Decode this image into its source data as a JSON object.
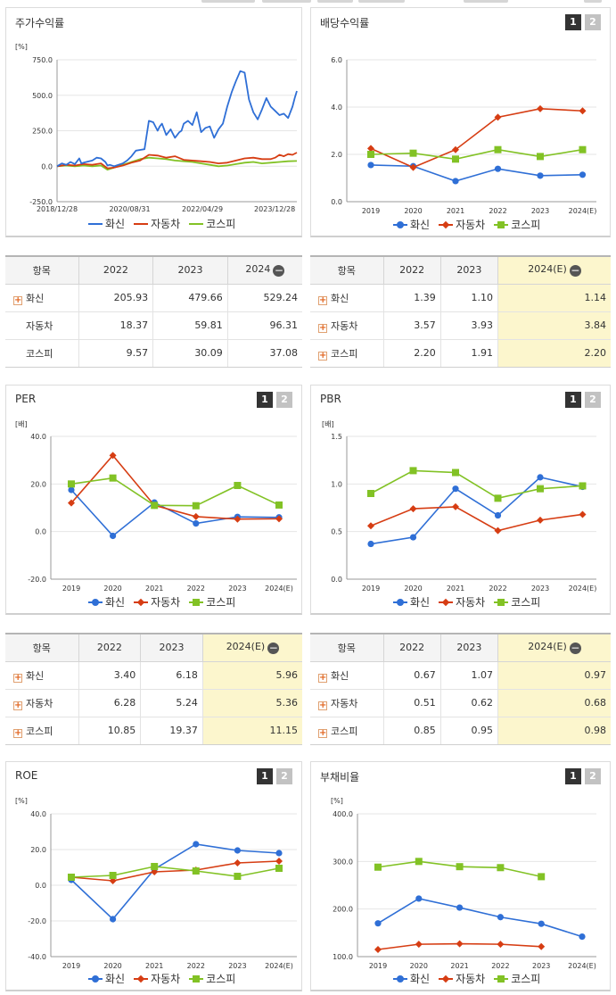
{
  "colors": {
    "hwashin": "#2f6fd6",
    "auto": "#d63d13",
    "kospi": "#82c225",
    "highlight": "#fcf6cd"
  },
  "legend_names": [
    "화신",
    "자동차",
    "코스피"
  ],
  "stock_return": {
    "title": "주가수익률",
    "unit": "[%]",
    "y_ticks": [
      "750.0",
      "500.0",
      "250.0",
      "0.0",
      "-250.0"
    ],
    "x_ticks": [
      "2018/12/28",
      "2020/08/31",
      "2022/04/29",
      "2023/12/28"
    ],
    "table": {
      "header": [
        "항목",
        "2022",
        "2023",
        "2024"
      ],
      "rows": [
        {
          "name": "화신",
          "values": [
            "205.93",
            "479.66",
            "529.24"
          ]
        },
        {
          "name": "자동차",
          "values": [
            "18.37",
            "59.81",
            "96.31"
          ]
        },
        {
          "name": "코스피",
          "values": [
            "9.57",
            "30.09",
            "37.08"
          ]
        }
      ]
    }
  },
  "dividend": {
    "title": "배당수익률",
    "unit": "[%]",
    "y_ticks": [
      "6.0",
      "4.0",
      "2.0",
      "0.0"
    ],
    "x_ticks": [
      "2019",
      "2020",
      "2021",
      "2022",
      "2023",
      "2024(E)"
    ],
    "table": {
      "header": [
        "항목",
        "2022",
        "2023",
        "2024(E)"
      ],
      "rows": [
        {
          "name": "화신",
          "values": [
            "1.39",
            "1.10",
            "1.14"
          ]
        },
        {
          "name": "자동차",
          "values": [
            "3.57",
            "3.93",
            "3.84"
          ]
        },
        {
          "name": "코스피",
          "values": [
            "2.20",
            "1.91",
            "2.20"
          ]
        }
      ]
    }
  },
  "per": {
    "title": "PER",
    "unit": "[배]",
    "y_ticks": [
      "40.0",
      "20.0",
      "0.0",
      "-20.0"
    ],
    "x_ticks": [
      "2019",
      "2020",
      "2021",
      "2022",
      "2023",
      "2024(E)"
    ],
    "table": {
      "header": [
        "항목",
        "2022",
        "2023",
        "2024(E)"
      ],
      "rows": [
        {
          "name": "화신",
          "values": [
            "3.40",
            "6.18",
            "5.96"
          ]
        },
        {
          "name": "자동차",
          "values": [
            "6.28",
            "5.24",
            "5.36"
          ]
        },
        {
          "name": "코스피",
          "values": [
            "10.85",
            "19.37",
            "11.15"
          ]
        }
      ]
    }
  },
  "pbr": {
    "title": "PBR",
    "unit": "[배]",
    "y_ticks": [
      "1.5",
      "1.0",
      "0.5",
      "0.0"
    ],
    "x_ticks": [
      "2019",
      "2020",
      "2021",
      "2022",
      "2023",
      "2024(E)"
    ],
    "table": {
      "header": [
        "항목",
        "2022",
        "2023",
        "2024(E)"
      ],
      "rows": [
        {
          "name": "화신",
          "values": [
            "0.67",
            "1.07",
            "0.97"
          ]
        },
        {
          "name": "자동차",
          "values": [
            "0.51",
            "0.62",
            "0.68"
          ]
        },
        {
          "name": "코스피",
          "values": [
            "0.85",
            "0.95",
            "0.98"
          ]
        }
      ]
    }
  },
  "roe": {
    "title": "ROE",
    "unit": "[%]",
    "y_ticks": [
      "40.0",
      "20.0",
      "0.0",
      "-20.0",
      "-40.0"
    ],
    "x_ticks": [
      "2019",
      "2020",
      "2021",
      "2022",
      "2023",
      "2024(E)"
    ]
  },
  "debt": {
    "title": "부채비율",
    "unit": "[%]",
    "y_ticks": [
      "400.0",
      "300.0",
      "200.0",
      "100.0"
    ],
    "x_ticks": [
      "2019",
      "2020",
      "2021",
      "2022",
      "2023",
      "2024(E)"
    ]
  },
  "pager": [
    "1",
    "2"
  ],
  "chart_data": [
    {
      "type": "line",
      "title": "주가수익률",
      "ylabel": "[%]",
      "ylim": [
        -250,
        750
      ],
      "x_ticks": [
        "2018/12/28",
        "2020/08/31",
        "2022/04/29",
        "2023/12/28"
      ],
      "x_range": [
        2018.99,
        2024.5
      ],
      "series": [
        {
          "name": "화신",
          "x": [
            2018.99,
            2019.1,
            2019.2,
            2019.3,
            2019.4,
            2019.5,
            2019.55,
            2019.6,
            2019.8,
            2019.9,
            2020.0,
            2020.1,
            2020.15,
            2020.2,
            2020.3,
            2020.4,
            2020.5,
            2020.6,
            2020.7,
            2020.8,
            2020.9,
            2021.0,
            2021.1,
            2021.2,
            2021.3,
            2021.35,
            2021.4,
            2021.5,
            2021.6,
            2021.7,
            2021.8,
            2021.85,
            2021.9,
            2022.0,
            2022.1,
            2022.2,
            2022.3,
            2022.4,
            2022.5,
            2022.6,
            2022.7,
            2022.8,
            2022.9,
            2023.0,
            2023.05,
            2023.1,
            2023.2,
            2023.3,
            2023.4,
            2023.5,
            2023.6,
            2023.7,
            2023.8,
            2023.9,
            2024.0,
            2024.1,
            2024.2,
            2024.3,
            2024.4,
            2024.45,
            2024.5
          ],
          "y": [
            0,
            20,
            10,
            30,
            15,
            55,
            20,
            25,
            40,
            60,
            55,
            30,
            5,
            10,
            0,
            10,
            20,
            40,
            70,
            110,
            115,
            120,
            320,
            310,
            250,
            280,
            300,
            220,
            260,
            200,
            240,
            250,
            300,
            320,
            290,
            380,
            240,
            270,
            280,
            200,
            260,
            300,
            420,
            520,
            560,
            600,
            670,
            660,
            470,
            380,
            330,
            400,
            480,
            420,
            390,
            360,
            370,
            340,
            420,
            480,
            530
          ]
        },
        {
          "name": "자동차",
          "x": [
            2018.99,
            2019.2,
            2019.4,
            2019.6,
            2019.8,
            2020.0,
            2020.15,
            2020.3,
            2020.5,
            2020.7,
            2020.9,
            2021.1,
            2021.3,
            2021.5,
            2021.7,
            2021.9,
            2022.1,
            2022.3,
            2022.5,
            2022.7,
            2022.9,
            2023.1,
            2023.3,
            2023.5,
            2023.7,
            2023.9,
            2024.0,
            2024.1,
            2024.2,
            2024.3,
            2024.4,
            2024.5
          ],
          "y": [
            0,
            10,
            5,
            15,
            10,
            20,
            -15,
            -10,
            5,
            25,
            40,
            80,
            75,
            60,
            70,
            45,
            40,
            35,
            30,
            20,
            25,
            40,
            55,
            60,
            50,
            50,
            60,
            80,
            70,
            85,
            80,
            96
          ]
        },
        {
          "name": "코스피",
          "x": [
            2018.99,
            2019.2,
            2019.4,
            2019.6,
            2019.8,
            2020.0,
            2020.15,
            2020.3,
            2020.5,
            2020.7,
            2020.9,
            2021.1,
            2021.3,
            2021.5,
            2021.7,
            2021.9,
            2022.1,
            2022.3,
            2022.5,
            2022.7,
            2022.9,
            2023.1,
            2023.3,
            2023.5,
            2023.7,
            2023.9,
            2024.1,
            2024.3,
            2024.5
          ],
          "y": [
            0,
            5,
            0,
            5,
            0,
            5,
            -25,
            -10,
            10,
            30,
            50,
            60,
            55,
            50,
            40,
            35,
            30,
            20,
            10,
            0,
            5,
            15,
            25,
            30,
            20,
            25,
            30,
            35,
            37
          ]
        }
      ]
    },
    {
      "type": "line",
      "title": "배당수익률",
      "ylabel": "[%]",
      "ylim": [
        0,
        6
      ],
      "categories": [
        "2019",
        "2020",
        "2021",
        "2022",
        "2023",
        "2024(E)"
      ],
      "series": [
        {
          "name": "화신",
          "values": [
            1.55,
            1.5,
            0.87,
            1.39,
            1.1,
            1.14
          ]
        },
        {
          "name": "자동차",
          "values": [
            2.25,
            1.45,
            2.2,
            3.57,
            3.93,
            3.84
          ]
        },
        {
          "name": "코스피",
          "values": [
            2.0,
            2.05,
            1.8,
            2.2,
            1.91,
            2.2
          ]
        }
      ]
    },
    {
      "type": "line",
      "title": "PER",
      "ylabel": "[배]",
      "ylim": [
        -20,
        40
      ],
      "categories": [
        "2019",
        "2020",
        "2021",
        "2022",
        "2023",
        "2024(E)"
      ],
      "series": [
        {
          "name": "화신",
          "values": [
            17.5,
            -1.8,
            12.2,
            3.4,
            6.18,
            5.96
          ]
        },
        {
          "name": "자동차",
          "values": [
            12.0,
            32.0,
            11.0,
            6.28,
            5.24,
            5.36
          ]
        },
        {
          "name": "코스피",
          "values": [
            20.0,
            22.5,
            11.0,
            10.85,
            19.37,
            11.15
          ]
        }
      ]
    },
    {
      "type": "line",
      "title": "PBR",
      "ylabel": "[배]",
      "ylim": [
        0,
        1.5
      ],
      "categories": [
        "2019",
        "2020",
        "2021",
        "2022",
        "2023",
        "2024(E)"
      ],
      "series": [
        {
          "name": "화신",
          "values": [
            0.37,
            0.44,
            0.95,
            0.67,
            1.07,
            0.97
          ]
        },
        {
          "name": "자동차",
          "values": [
            0.56,
            0.74,
            0.76,
            0.51,
            0.62,
            0.68
          ]
        },
        {
          "name": "코스피",
          "values": [
            0.9,
            1.14,
            1.12,
            0.85,
            0.95,
            0.98
          ]
        }
      ]
    },
    {
      "type": "line",
      "title": "ROE",
      "ylabel": "[%]",
      "ylim": [
        -40,
        40
      ],
      "categories": [
        "2019",
        "2020",
        "2021",
        "2022",
        "2023",
        "2024(E)"
      ],
      "series": [
        {
          "name": "화신",
          "values": [
            3.0,
            -19.0,
            9.0,
            23.0,
            19.5,
            18.0
          ]
        },
        {
          "name": "자동차",
          "values": [
            4.5,
            2.5,
            7.5,
            8.5,
            12.5,
            13.5
          ]
        },
        {
          "name": "코스피",
          "values": [
            4.5,
            5.5,
            10.5,
            8.0,
            5.0,
            9.5
          ]
        }
      ]
    },
    {
      "type": "line",
      "title": "부채비율",
      "ylabel": "[%]",
      "ylim": [
        100,
        400
      ],
      "categories": [
        "2019",
        "2020",
        "2021",
        "2022",
        "2023",
        "2024(E)"
      ],
      "series": [
        {
          "name": "화신",
          "values": [
            170,
            222,
            203,
            183,
            169,
            142
          ]
        },
        {
          "name": "자동차",
          "values": [
            115,
            126,
            127,
            126,
            121,
            null
          ]
        },
        {
          "name": "코스피",
          "values": [
            288,
            300,
            289,
            287,
            268,
            null
          ]
        }
      ]
    }
  ]
}
